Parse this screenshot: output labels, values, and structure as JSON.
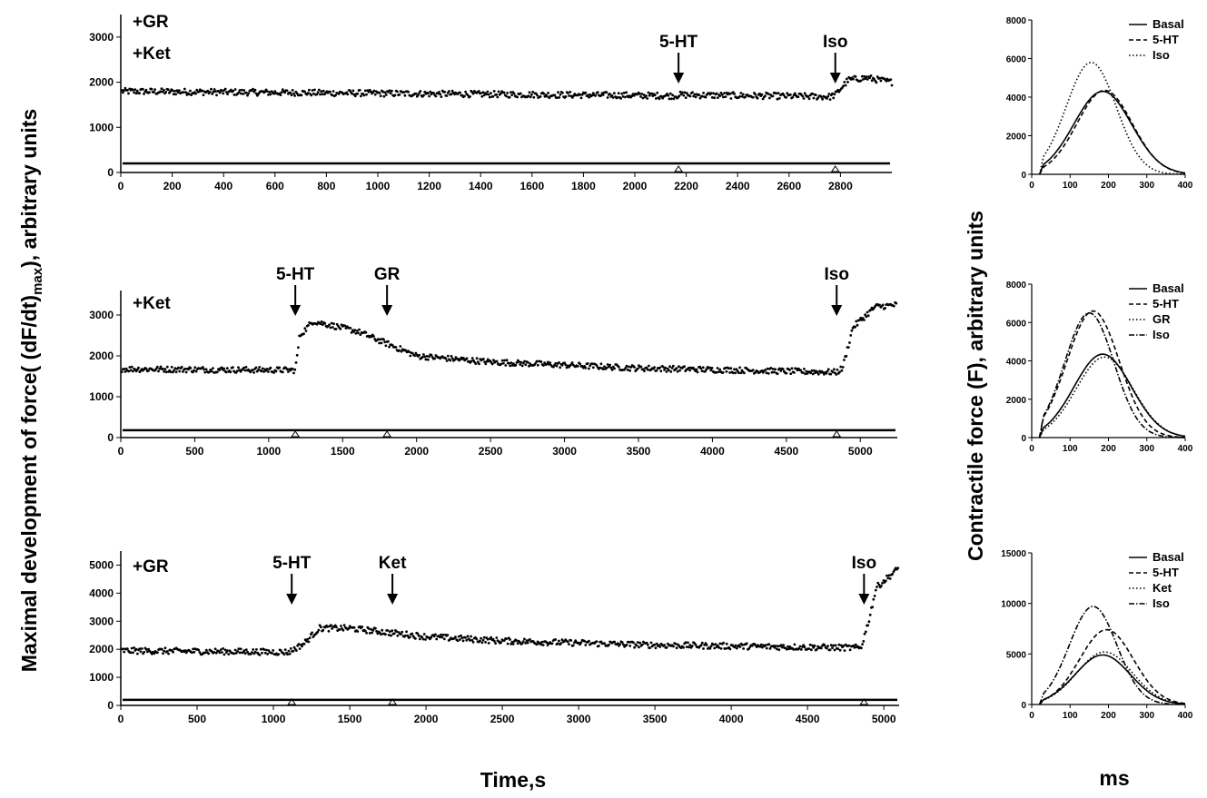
{
  "ylabel_left": "Maximal development of force( (dF/dt)",
  "ylabel_left_sub": "max",
  "ylabel_left_tail": "), arbitrary units",
  "xlabel_left": "Time,s",
  "ylabel_right": "Contractile force (F), arbitrary units",
  "xlabel_right": "ms",
  "chart_data": [
    {
      "type": "scatter",
      "id": "trace1",
      "conditions": [
        "+GR",
        "+Ket"
      ],
      "xlim": [
        0,
        3000
      ],
      "ylim": [
        0,
        3500
      ],
      "x_ticks": [
        0,
        200,
        400,
        600,
        800,
        1000,
        1200,
        1400,
        1600,
        1800,
        2000,
        2200,
        2400,
        2600,
        2800
      ],
      "y_ticks": [
        0,
        1000,
        2000,
        3000
      ],
      "trace": {
        "x": [
          0,
          2160,
          2170,
          2760,
          2780,
          2830,
          2900,
          3000
        ],
        "y": [
          1800,
          1700,
          1720,
          1680,
          1720,
          2050,
          2100,
          2000
        ]
      },
      "baseline": 200,
      "annotations": [
        {
          "label": "5-HT",
          "x": 2170
        },
        {
          "label": "Iso",
          "x": 2780
        }
      ]
    },
    {
      "type": "scatter",
      "id": "trace2",
      "conditions": [
        "+Ket"
      ],
      "xlim": [
        0,
        5250
      ],
      "ylim": [
        0,
        3600
      ],
      "x_ticks": [
        0,
        500,
        1000,
        1500,
        2000,
        2500,
        3000,
        3500,
        4000,
        4500,
        5000
      ],
      "y_ticks": [
        0,
        1000,
        2000,
        3000
      ],
      "trace": {
        "x": [
          0,
          1180,
          1210,
          1300,
          1600,
          2000,
          2500,
          3500,
          4840,
          4880,
          4950,
          5100,
          5250
        ],
        "y": [
          1680,
          1650,
          2500,
          2850,
          2600,
          2000,
          1850,
          1700,
          1600,
          1700,
          2700,
          3200,
          3250
        ]
      },
      "baseline": 180,
      "annotations": [
        {
          "label": "5-HT",
          "x": 1180
        },
        {
          "label": "GR",
          "x": 1800
        },
        {
          "label": "Iso",
          "x": 4840
        }
      ]
    },
    {
      "type": "scatter",
      "id": "trace3",
      "conditions": [
        "+GR"
      ],
      "xlim": [
        0,
        5100
      ],
      "ylim": [
        0,
        5500
      ],
      "x_ticks": [
        0,
        500,
        1000,
        1500,
        2000,
        2500,
        3000,
        3500,
        4000,
        4500,
        5000
      ],
      "y_ticks": [
        0,
        1000,
        2000,
        3000,
        4000,
        5000
      ],
      "trace": {
        "x": [
          0,
          1100,
          1200,
          1300,
          1500,
          2000,
          2500,
          3500,
          4850,
          4900,
          4950,
          5100
        ],
        "y": [
          1950,
          1900,
          2200,
          2750,
          2750,
          2450,
          2300,
          2150,
          2050,
          3000,
          4200,
          4900
        ]
      },
      "baseline": 200,
      "annotations": [
        {
          "label": "5-HT",
          "x": 1120
        },
        {
          "label": "Ket",
          "x": 1780
        },
        {
          "label": "Iso",
          "x": 4870
        }
      ]
    },
    {
      "type": "line",
      "id": "force1",
      "xlim": [
        0,
        400
      ],
      "ylim": [
        0,
        8000
      ],
      "x_ticks": [
        0,
        100,
        200,
        300,
        400
      ],
      "y_ticks": [
        0,
        2000,
        4000,
        6000,
        8000
      ],
      "series": [
        {
          "name": "Basal",
          "style": "solid",
          "peak": 4300,
          "peak_x": 185,
          "width": 75
        },
        {
          "name": "5-HT",
          "style": "dashed",
          "peak": 4350,
          "peak_x": 190,
          "width": 72
        },
        {
          "name": "Iso",
          "style": "dotted",
          "peak": 5800,
          "peak_x": 155,
          "width": 65
        }
      ]
    },
    {
      "type": "line",
      "id": "force2",
      "xlim": [
        0,
        400
      ],
      "ylim": [
        0,
        8000
      ],
      "x_ticks": [
        0,
        100,
        200,
        300,
        400
      ],
      "y_ticks": [
        0,
        2000,
        4000,
        6000,
        8000
      ],
      "series": [
        {
          "name": "Basal",
          "style": "solid",
          "peak": 4350,
          "peak_x": 185,
          "width": 75
        },
        {
          "name": "5-HT",
          "style": "dashed",
          "peak": 6600,
          "peak_x": 160,
          "width": 68
        },
        {
          "name": "GR",
          "style": "dotted",
          "peak": 4200,
          "peak_x": 190,
          "width": 74
        },
        {
          "name": "Iso",
          "style": "dashdot",
          "peak": 6500,
          "peak_x": 150,
          "width": 64
        }
      ]
    },
    {
      "type": "line",
      "id": "force3",
      "xlim": [
        0,
        400
      ],
      "ylim": [
        0,
        15000
      ],
      "x_ticks": [
        0,
        100,
        200,
        300,
        400
      ],
      "y_ticks": [
        0,
        5000,
        10000,
        15000
      ],
      "series": [
        {
          "name": "Basal",
          "style": "solid",
          "peak": 4900,
          "peak_x": 185,
          "width": 72
        },
        {
          "name": "5-HT",
          "style": "dashed",
          "peak": 7400,
          "peak_x": 195,
          "width": 70
        },
        {
          "name": "Ket",
          "style": "dotted",
          "peak": 5200,
          "peak_x": 190,
          "width": 72
        },
        {
          "name": "Iso",
          "style": "dashdot",
          "peak": 9700,
          "peak_x": 160,
          "width": 62
        }
      ]
    }
  ]
}
